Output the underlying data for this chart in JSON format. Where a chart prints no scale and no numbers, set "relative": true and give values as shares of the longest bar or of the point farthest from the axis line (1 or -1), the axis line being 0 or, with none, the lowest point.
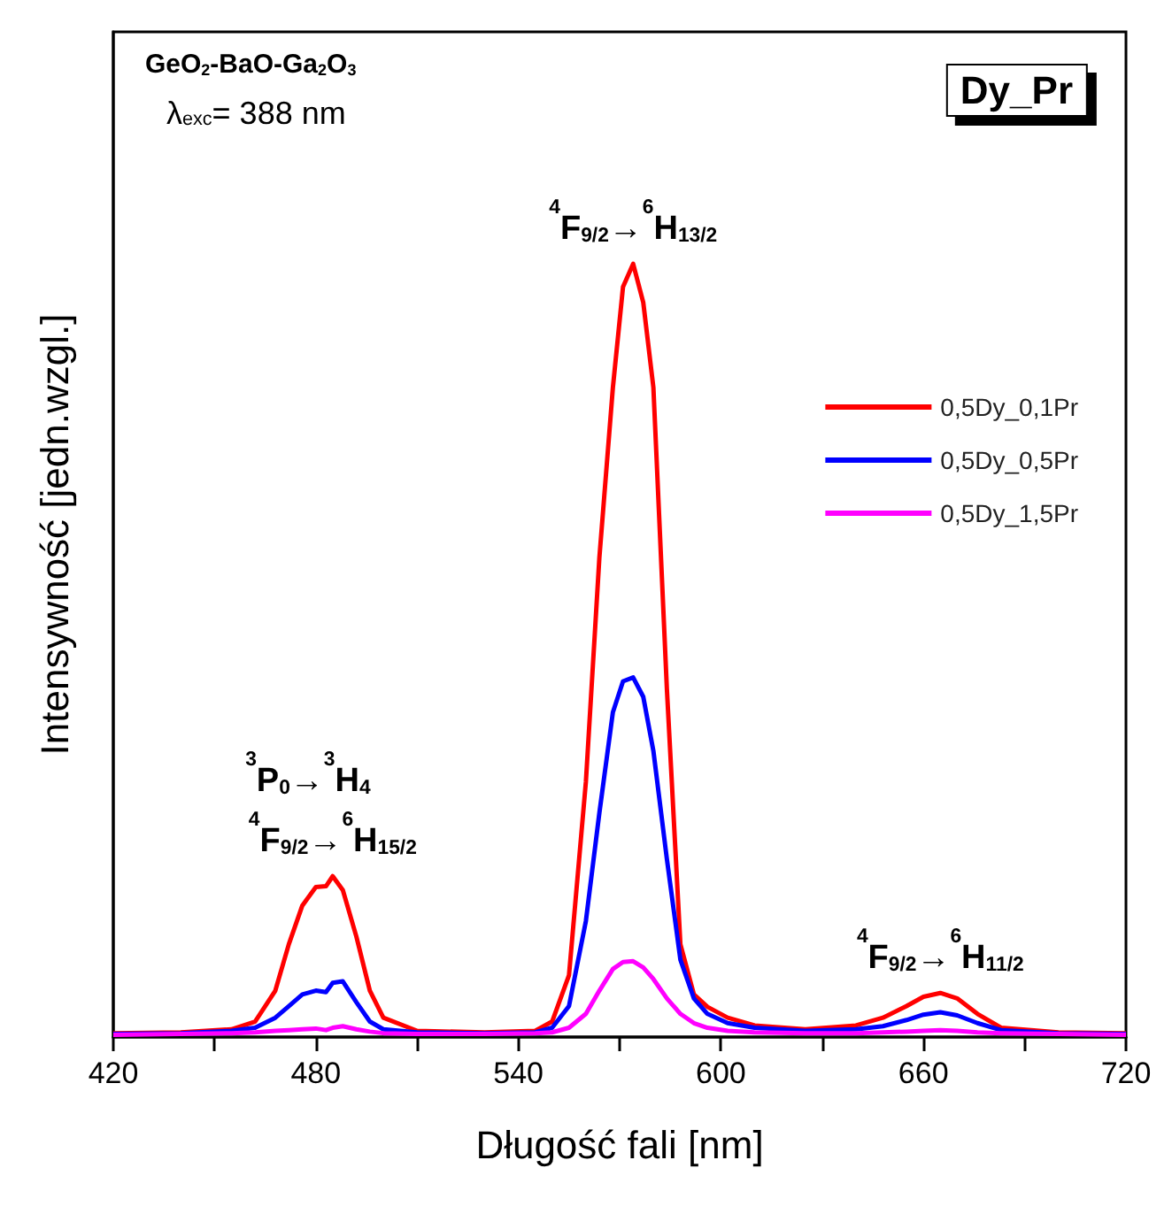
{
  "chart_data": {
    "type": "line",
    "title": "Dy_Pr",
    "xlabel": "Długość fali [nm]",
    "ylabel": "Intensywność [jedn.wzgl.]",
    "relative": true,
    "annotations": [
      "GeO$_{2}$-BaO-Ga$_{2}$O$_{3}$",
      "λ$_{exc}$= 388 nm",
      {
        "text": "$^{4}$F$_{9/2}$→$^{6}$H$_{13/2}$",
        "x": 574,
        "y": 1
      },
      {
        "text": "$^{4}$F$_{9/2}$→$^{6}$H$_{15/2}$",
        "x": 485,
        "y": 0.208
      },
      {
        "text": "$^{3}$P$_{0}$→$^{3}$H$_{4}$",
        "x": 485,
        "y": 0.208
      },
      {
        "text": "$^{4}$F$_{9/2}$→$^{6}$H$_{11/2}$",
        "x": 665,
        "y": 0.057
      }
    ],
    "x": [
      420,
      440,
      455,
      462,
      468,
      472,
      476,
      480,
      483,
      485,
      488,
      492,
      496,
      500,
      510,
      530,
      545,
      550,
      555,
      560,
      564,
      568,
      571,
      574,
      577,
      580,
      584,
      588,
      592,
      596,
      602,
      610,
      625,
      640,
      648,
      655,
      660,
      665,
      670,
      676,
      683,
      700,
      720
    ],
    "xlim": [
      420,
      720
    ],
    "xticks": [
      420,
      {
        "value": 450,
        "label": null
      },
      480,
      {
        "value": 510,
        "label": null
      },
      540,
      {
        "value": 570,
        "label": null
      },
      600,
      {
        "value": 630,
        "label": null
      },
      660,
      {
        "value": 690,
        "label": null
      },
      720
    ],
    "series": [
      {
        "name": "0,5Dy_0,1Pr",
        "color": "#ff0000",
        "values": [
          0.005,
          0.006,
          0.01,
          0.02,
          0.06,
          0.12,
          0.17,
          0.194,
          0.195,
          0.208,
          0.19,
          0.13,
          0.06,
          0.025,
          0.008,
          0.006,
          0.008,
          0.02,
          0.08,
          0.33,
          0.62,
          0.84,
          0.97,
          1,
          0.95,
          0.84,
          0.45,
          0.12,
          0.055,
          0.039,
          0.025,
          0.015,
          0.01,
          0.015,
          0.025,
          0.04,
          0.052,
          0.057,
          0.05,
          0.03,
          0.012,
          0.006,
          0.005
        ]
      },
      {
        "name": "0,5Dy_0,5Pr",
        "color": "#0000ff",
        "values": [
          0.004,
          0.005,
          0.008,
          0.012,
          0.025,
          0.04,
          0.055,
          0.06,
          0.058,
          0.07,
          0.072,
          0.045,
          0.02,
          0.01,
          0.006,
          0.005,
          0.006,
          0.012,
          0.04,
          0.15,
          0.29,
          0.42,
          0.46,
          0.465,
          0.44,
          0.37,
          0.23,
          0.1,
          0.05,
          0.03,
          0.018,
          0.012,
          0.008,
          0.01,
          0.014,
          0.022,
          0.029,
          0.032,
          0.028,
          0.018,
          0.009,
          0.005,
          0.004
        ]
      },
      {
        "name": "0,5Dy_1,5Pr",
        "color": "#ff00ff",
        "values": [
          0.003,
          0.004,
          0.005,
          0.006,
          0.008,
          0.009,
          0.01,
          0.011,
          0.009,
          0.012,
          0.014,
          0.01,
          0.007,
          0.005,
          0.004,
          0.004,
          0.005,
          0.006,
          0.012,
          0.03,
          0.06,
          0.088,
          0.097,
          0.098,
          0.09,
          0.075,
          0.05,
          0.03,
          0.018,
          0.012,
          0.008,
          0.006,
          0.005,
          0.005,
          0.006,
          0.007,
          0.008,
          0.009,
          0.008,
          0.006,
          0.005,
          0.004,
          0.003
        ]
      }
    ],
    "legend": "right",
    "grid": false,
    "marker": "none",
    "line_style": "solid"
  }
}
